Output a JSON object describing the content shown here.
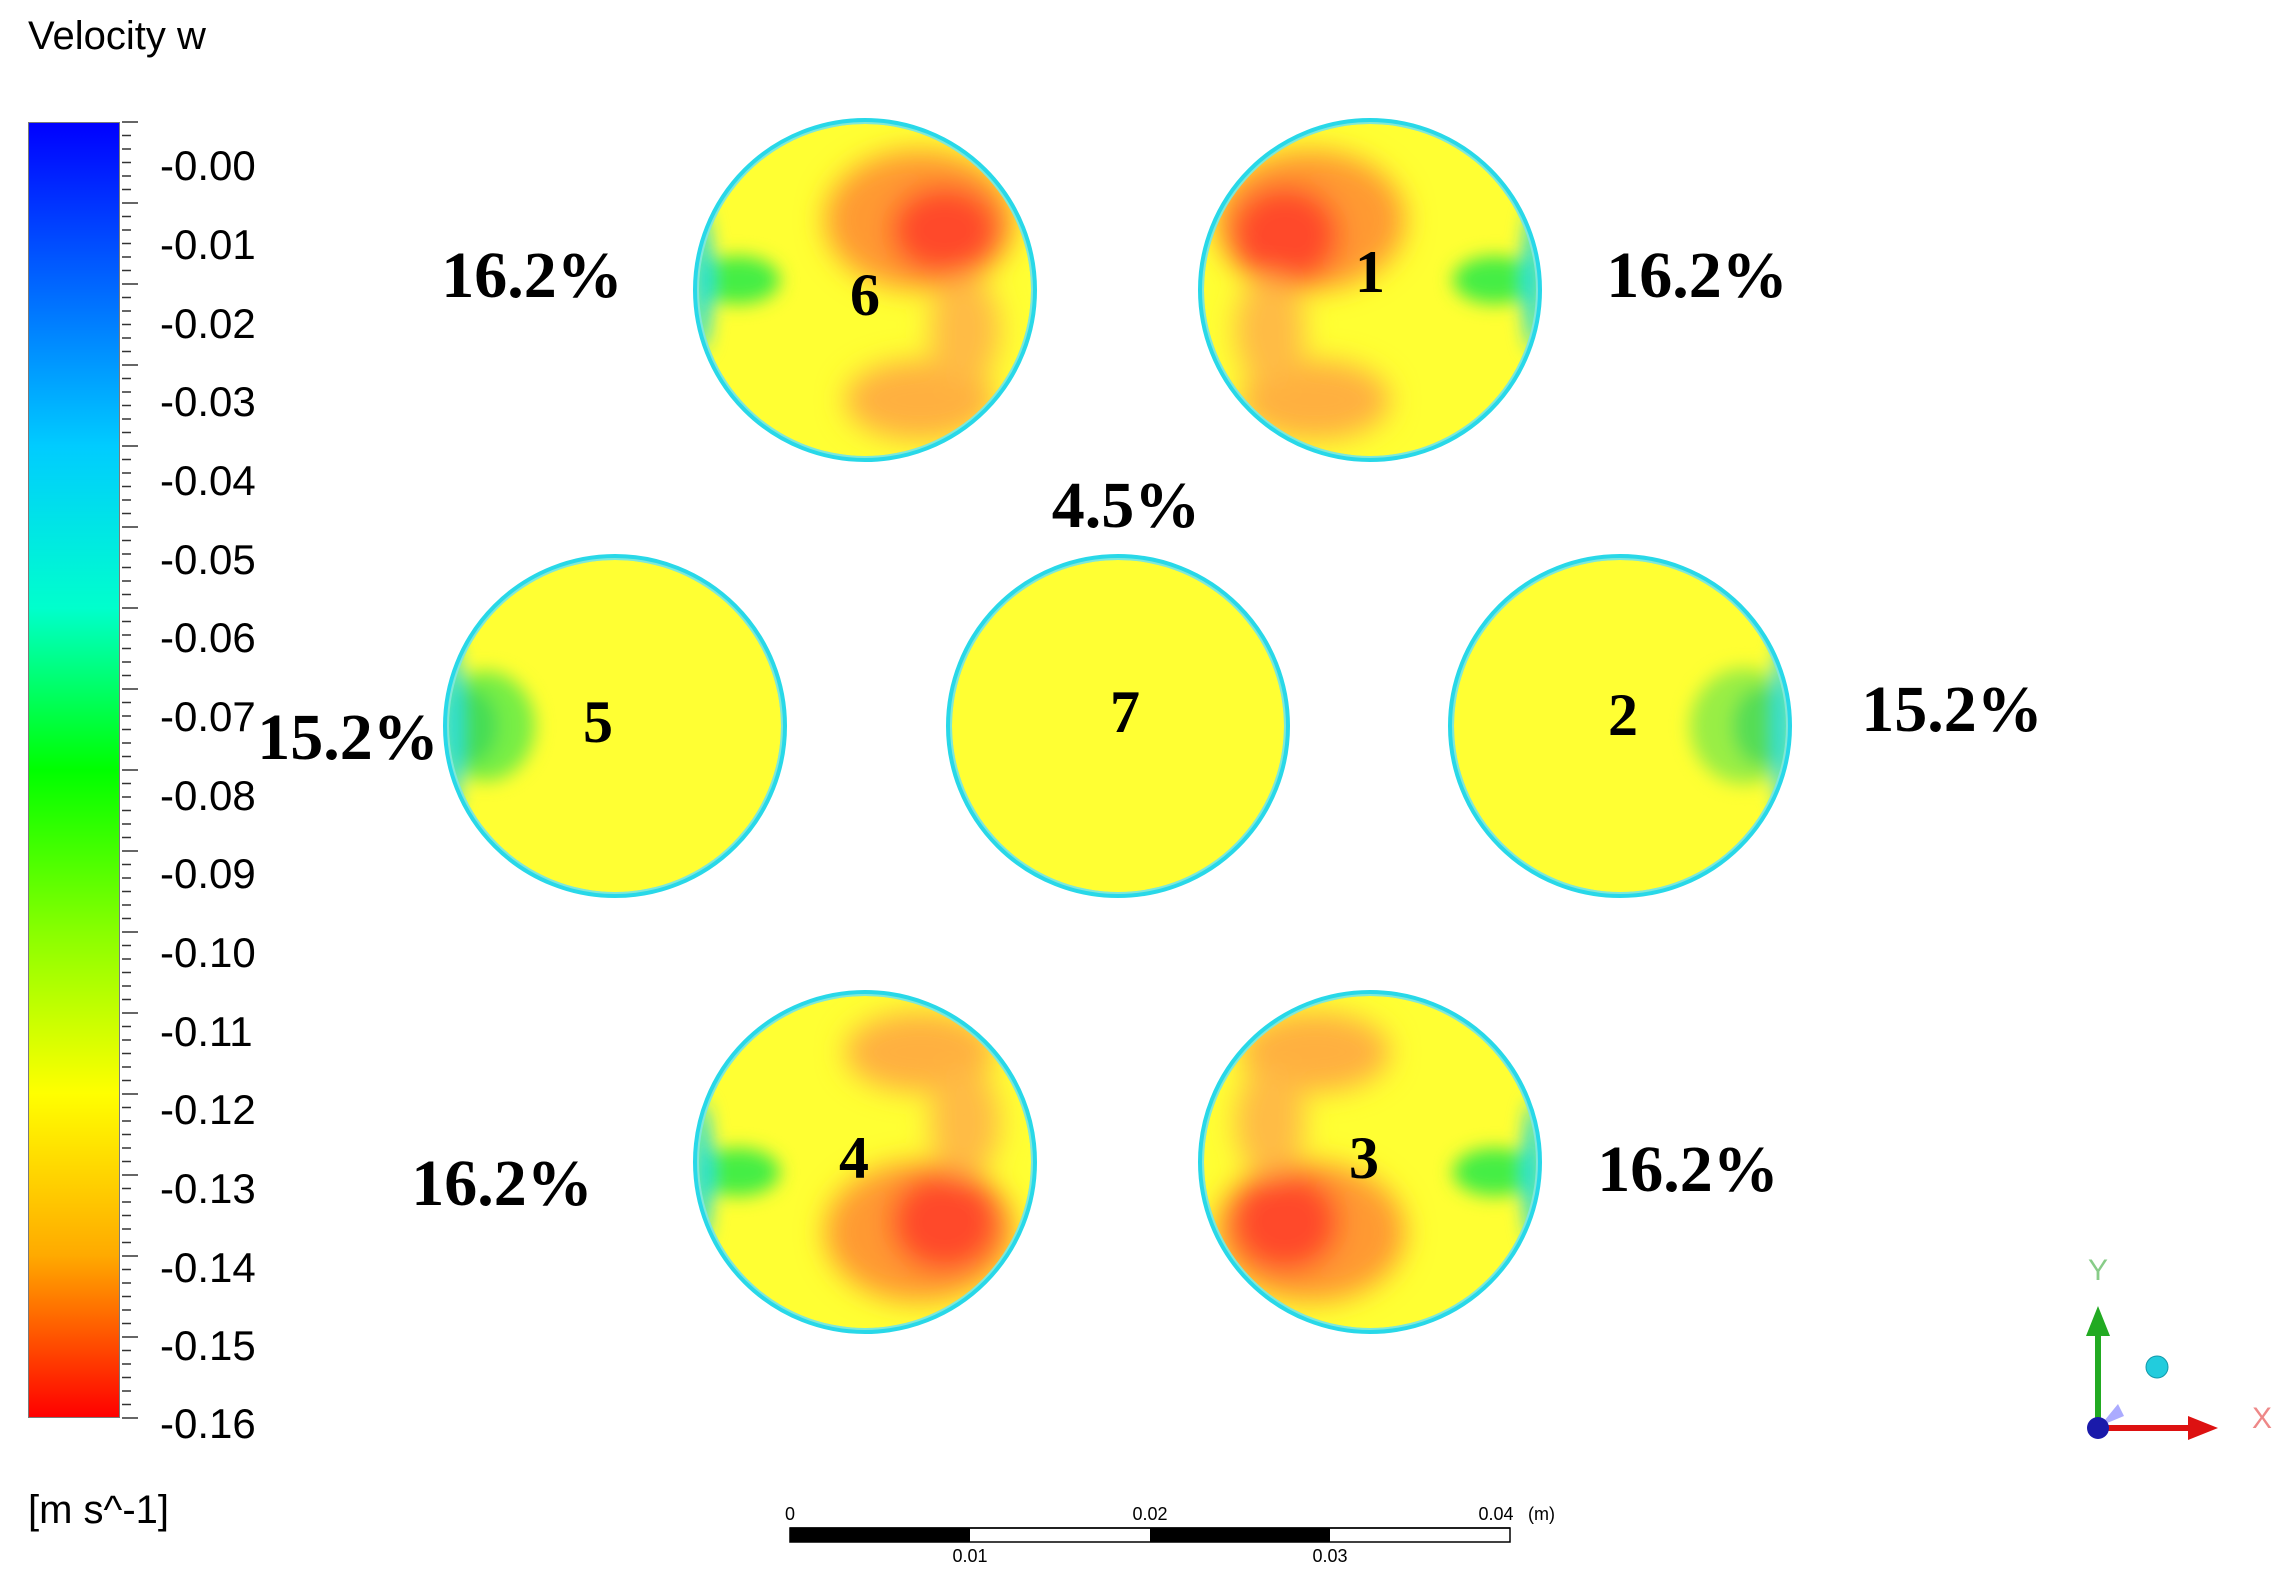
{
  "legend": {
    "title": "Velocity w",
    "unit": "[m s^-1]",
    "ticks": [
      "-0.00",
      "-0.01",
      "-0.02",
      "-0.03",
      "-0.04",
      "-0.05",
      "-0.06",
      "-0.07",
      "-0.08",
      "-0.09",
      "-0.10",
      "-0.11",
      "-0.12",
      "-0.13",
      "-0.14",
      "-0.15",
      "-0.16"
    ],
    "colors": [
      "#0000ff",
      "#0066ff",
      "#00ccff",
      "#00ffcc",
      "#00ff00",
      "#88ff00",
      "#ffff00",
      "#ffaa00",
      "#ff0000"
    ]
  },
  "tubes": [
    {
      "number": "6",
      "percent": "16.2%"
    },
    {
      "number": "1",
      "percent": "16.2%"
    },
    {
      "number": "5",
      "percent": "15.2%"
    },
    {
      "number": "7",
      "percent": "4.5%"
    },
    {
      "number": "2",
      "percent": "15.2%"
    },
    {
      "number": "4",
      "percent": "16.2%"
    },
    {
      "number": "3",
      "percent": "16.2%"
    }
  ],
  "axes": {
    "y_label": "Y",
    "x_label": "X"
  },
  "scale_bar": {
    "top_labels": [
      "0",
      "0.02",
      "0.04"
    ],
    "unit": "(m)",
    "bottom_labels": [
      "0.01",
      "0.03"
    ]
  }
}
